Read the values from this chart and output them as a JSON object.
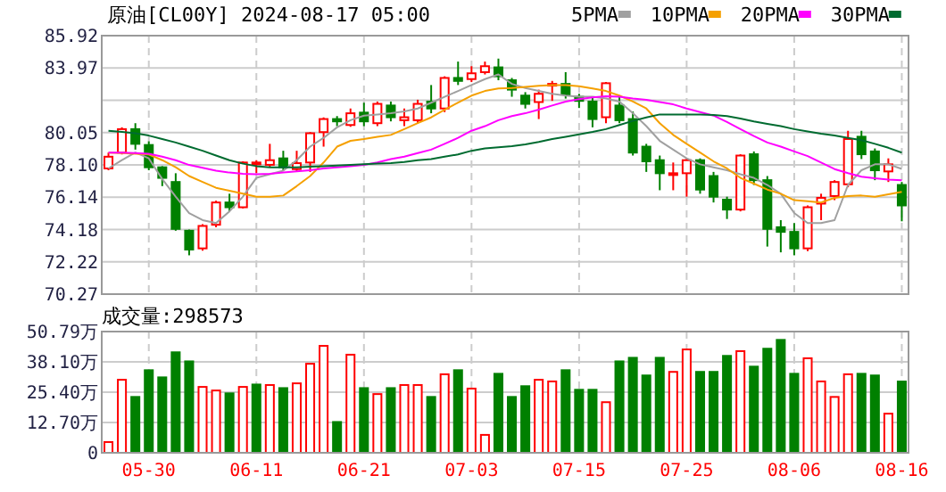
{
  "chart_data": [
    {
      "type": "candlestick",
      "title": "原油[CL00Y] 2024-08-17 05:00",
      "categories": [
        null,
        null,
        null,
        null,
        null,
        null,
        null,
        null,
        null,
        null,
        null,
        null,
        null,
        null,
        null,
        null,
        null,
        null,
        null,
        null,
        null,
        null,
        null,
        null,
        null,
        null,
        null,
        null,
        null,
        null,
        null,
        null,
        null,
        null,
        null,
        null,
        null,
        null,
        null,
        null,
        null,
        null,
        null,
        null,
        null,
        null,
        null,
        null,
        null,
        null,
        null,
        null,
        null,
        null,
        null,
        null,
        null,
        null,
        null,
        null
      ],
      "ohlc": [
        [
          77.88,
          78.84,
          77.77,
          78.59
        ],
        [
          78.84,
          80.37,
          78.73,
          80.26
        ],
        [
          80.26,
          80.62,
          79.02,
          79.37
        ],
        [
          79.3,
          79.52,
          77.77,
          77.95
        ],
        [
          77.95,
          78.02,
          76.81,
          77.31
        ],
        [
          77.06,
          77.59,
          74.11,
          74.22
        ],
        [
          74.11,
          74.18,
          72.62,
          72.97
        ],
        [
          73.04,
          74.5,
          72.9,
          74.4
        ],
        [
          74.47,
          75.93,
          74.32,
          75.82
        ],
        [
          75.82,
          76.35,
          75.29,
          75.53
        ],
        [
          75.53,
          78.31,
          75.46,
          78.24
        ],
        [
          78.17,
          78.38,
          77.6,
          78.24
        ],
        [
          78.1,
          79.37,
          77.95,
          78.38
        ],
        [
          78.49,
          78.95,
          77.77,
          77.95
        ],
        [
          77.84,
          78.95,
          77.67,
          78.2
        ],
        [
          78.24,
          80.08,
          77.67,
          80.01
        ],
        [
          80.08,
          80.97,
          79.2,
          80.87
        ],
        [
          80.87,
          81.05,
          80.44,
          80.73
        ],
        [
          80.51,
          81.51,
          80.4,
          81.22
        ],
        [
          81.26,
          81.86,
          80.44,
          80.73
        ],
        [
          80.62,
          81.93,
          80.44,
          81.79
        ],
        [
          81.69,
          81.93,
          80.73,
          80.98
        ],
        [
          80.8,
          81.51,
          80.44,
          80.98
        ],
        [
          80.8,
          82.04,
          80.62,
          81.79
        ],
        [
          81.93,
          82.93,
          81.22,
          81.51
        ],
        [
          81.51,
          83.46,
          81.29,
          83.36
        ],
        [
          83.36,
          84.35,
          82.93,
          83.18
        ],
        [
          83.29,
          84.07,
          83.11,
          83.64
        ],
        [
          83.71,
          84.35,
          83.57,
          84.07
        ],
        [
          84.0,
          84.53,
          83.22,
          83.46
        ],
        [
          83.22,
          83.36,
          82.22,
          82.65
        ],
        [
          82.29,
          82.5,
          81.51,
          81.79
        ],
        [
          81.9,
          82.65,
          80.87,
          82.4
        ],
        [
          82.9,
          83.18,
          81.97,
          83.0
        ],
        [
          83.0,
          83.71,
          82.11,
          82.36
        ],
        [
          82.22,
          82.4,
          81.54,
          81.97
        ],
        [
          81.93,
          82.22,
          80.37,
          80.87
        ],
        [
          80.98,
          83.11,
          80.62,
          83.04
        ],
        [
          81.69,
          82.29,
          80.62,
          80.8
        ],
        [
          80.87,
          81.33,
          78.66,
          78.84
        ],
        [
          79.2,
          79.37,
          77.67,
          78.31
        ],
        [
          78.38,
          78.66,
          76.56,
          77.59
        ],
        [
          77.52,
          78.24,
          76.56,
          77.59
        ],
        [
          77.59,
          78.49,
          76.17,
          78.38
        ],
        [
          78.38,
          78.49,
          76.35,
          76.6
        ],
        [
          77.42,
          77.67,
          75.82,
          76.17
        ],
        [
          75.99,
          76.17,
          74.82,
          75.39
        ],
        [
          75.39,
          78.74,
          75.28,
          78.66
        ],
        [
          78.74,
          78.91,
          76.88,
          77.17
        ],
        [
          77.17,
          77.42,
          73.15,
          74.22
        ],
        [
          74.32,
          74.75,
          72.8,
          74.04
        ],
        [
          74.04,
          74.57,
          72.62,
          73.04
        ],
        [
          73.04,
          75.64,
          72.87,
          75.53
        ],
        [
          75.75,
          76.35,
          74.75,
          76.1
        ],
        [
          76.21,
          77.17,
          75.96,
          77.06
        ],
        [
          76.92,
          80.16,
          76.74,
          79.66
        ],
        [
          79.8,
          80.16,
          78.45,
          78.74
        ],
        [
          78.91,
          79.09,
          77.17,
          77.77
        ],
        [
          77.7,
          78.49,
          77.06,
          78.13
        ],
        [
          76.88,
          77.06,
          74.68,
          75.64
        ]
      ],
      "colors": [
        "#ff0000",
        "#ff0000",
        "#008000",
        "#008000",
        "#008000",
        "#008000",
        "#008000",
        "#ff0000",
        "#ff0000",
        "#008000",
        "#ff0000",
        "#ff0000",
        "#ff0000",
        "#008000",
        "#ff0000",
        "#ff0000",
        "#ff0000",
        "#008000",
        "#ff0000",
        "#008000",
        "#ff0000",
        "#008000",
        "#ff0000",
        "#ff0000",
        "#008000",
        "#ff0000",
        "#008000",
        "#ff0000",
        "#ff0000",
        "#008000",
        "#008000",
        "#008000",
        "#ff0000",
        "#ff0000",
        "#008000",
        "#008000",
        "#008000",
        "#ff0000",
        "#008000",
        "#008000",
        "#008000",
        "#008000",
        "#ff0000",
        "#ff0000",
        "#008000",
        "#008000",
        "#008000",
        "#ff0000",
        "#008000",
        "#008000",
        "#008000",
        "#008000",
        "#ff0000",
        "#ff0000",
        "#ff0000",
        "#ff0000",
        "#008000",
        "#008000",
        "#ff0000",
        "#008000"
      ],
      "series": [
        {
          "type": "line",
          "name": "5PMA",
          "color": "#a0a0a0",
          "values": [
            77.88,
            78.38,
            78.84,
            78.49,
            77.24,
            76.17,
            75.18,
            74.75,
            74.57,
            75.28,
            76.17,
            77.31,
            77.53,
            77.74,
            78.38,
            79.2,
            79.73,
            80.37,
            80.8,
            81.08,
            81.15,
            81.22,
            81.33,
            81.51,
            81.86,
            82.22,
            82.57,
            82.93,
            83.29,
            83.57,
            83.0,
            82.75,
            82.57,
            82.4,
            82.29,
            82.22,
            82.22,
            82.11,
            81.93,
            81.22,
            80.44,
            79.55,
            79.02,
            78.49,
            78.13,
            77.95,
            77.77,
            77.53,
            77.31,
            76.88,
            76.35,
            75.18,
            74.57,
            74.57,
            74.75,
            76.88,
            77.77,
            78.13,
            78.13,
            77.85
          ]
        },
        {
          "type": "line",
          "name": "10PMA",
          "color": "#f5a000",
          "values": [
            78.84,
            78.81,
            78.77,
            78.73,
            78.38,
            77.95,
            77.42,
            77.06,
            76.71,
            76.53,
            76.35,
            76.17,
            76.17,
            76.24,
            76.81,
            77.42,
            78.24,
            79.2,
            79.55,
            79.66,
            79.8,
            79.91,
            80.26,
            80.62,
            80.97,
            81.44,
            81.86,
            82.29,
            82.57,
            82.72,
            82.75,
            82.82,
            82.89,
            82.93,
            82.93,
            82.86,
            82.72,
            82.57,
            82.29,
            81.93,
            81.51,
            80.62,
            79.91,
            79.37,
            78.84,
            78.31,
            77.88,
            77.31,
            76.96,
            76.6,
            76.35,
            75.96,
            75.89,
            75.82,
            76.1,
            76.21,
            76.24,
            76.17,
            76.31,
            76.46
          ]
        },
        {
          "type": "line",
          "name": "20PMA",
          "color": "#ff00ff",
          "values": [
            78.84,
            78.84,
            78.81,
            78.77,
            78.59,
            78.38,
            78.09,
            77.92,
            77.74,
            77.63,
            77.56,
            77.53,
            77.56,
            77.63,
            77.7,
            77.77,
            77.88,
            77.95,
            78.02,
            78.09,
            78.24,
            78.45,
            78.59,
            78.81,
            79.02,
            79.37,
            79.73,
            80.16,
            80.44,
            80.8,
            81.05,
            81.22,
            81.44,
            81.69,
            81.93,
            82.08,
            82.18,
            82.25,
            82.22,
            82.11,
            82.04,
            81.9,
            81.76,
            81.51,
            81.29,
            81.08,
            80.69,
            80.26,
            79.84,
            79.45,
            79.2,
            78.91,
            78.63,
            78.24,
            77.84,
            77.6,
            77.38,
            77.28,
            77.21,
            77.17
          ]
        },
        {
          "type": "line",
          "name": "30PMA",
          "color": "#006b30",
          "values": [
            80.16,
            80.09,
            80.01,
            79.87,
            79.66,
            79.45,
            79.2,
            78.95,
            78.66,
            78.38,
            78.17,
            78.02,
            77.95,
            77.95,
            77.95,
            77.99,
            78.02,
            78.06,
            78.09,
            78.13,
            78.17,
            78.2,
            78.27,
            78.38,
            78.45,
            78.59,
            78.73,
            78.95,
            79.09,
            79.16,
            79.23,
            79.34,
            79.48,
            79.66,
            79.8,
            79.94,
            80.09,
            80.26,
            80.51,
            80.76,
            80.97,
            81.15,
            81.15,
            81.15,
            81.15,
            81.12,
            81.05,
            80.9,
            80.73,
            80.58,
            80.44,
            80.26,
            80.12,
            79.98,
            79.87,
            79.73,
            79.59,
            79.37,
            79.13,
            78.84
          ]
        }
      ],
      "ylim": [
        70.27,
        85.92
      ],
      "yticks": [
        85.92,
        83.97,
        {
          "value": 82.01,
          "label": null
        },
        80.05,
        {
          "value": 78.1,
          "label": "78.10"
        },
        76.14,
        74.18,
        72.22,
        70.27
      ],
      "grid": true,
      "legend": "top right",
      "tick_labels": "y"
    },
    {
      "type": "bar",
      "title": "成交量:298573",
      "categories": [
        null,
        null,
        null,
        "05-30",
        null,
        null,
        null,
        null,
        null,
        null,
        null,
        "06-11",
        null,
        null,
        null,
        null,
        null,
        null,
        null,
        "06-21",
        null,
        null,
        null,
        null,
        null,
        null,
        null,
        "07-03",
        null,
        null,
        null,
        null,
        null,
        null,
        null,
        "07-15",
        null,
        null,
        null,
        null,
        null,
        null,
        null,
        "07-25",
        null,
        null,
        null,
        null,
        null,
        null,
        null,
        "08-06",
        null,
        null,
        null,
        null,
        null,
        null,
        null,
        "08-16"
      ],
      "values": [
        4.5,
        30.6,
        23.4,
        34.6,
        31.6,
        42.1,
        38.3,
        27.6,
        26.1,
        24.9,
        27.6,
        28.6,
        28.4,
        27.1,
        29.1,
        37.3,
        44.8,
        12.9,
        41.1,
        27.1,
        24.6,
        27.1,
        28.4,
        28.4,
        23.4,
        32.9,
        34.6,
        26.9,
        7.5,
        33.1,
        23.4,
        27.9,
        30.6,
        29.9,
        34.6,
        26.4,
        26.4,
        21.2,
        38.3,
        39.8,
        32.4,
        39.8,
        33.9,
        43.3,
        33.9,
        33.9,
        40.6,
        42.6,
        36.1,
        43.6,
        47.3,
        33.1,
        39.6,
        29.9,
        23.4,
        32.9,
        33.1,
        32.4,
        16.4,
        29.86
      ],
      "colors": [
        "#ff0000",
        "#ff0000",
        "#008000",
        "#008000",
        "#008000",
        "#008000",
        "#008000",
        "#ff0000",
        "#ff0000",
        "#008000",
        "#ff0000",
        "#008000",
        "#ff0000",
        "#008000",
        "#ff0000",
        "#ff0000",
        "#ff0000",
        "#008000",
        "#ff0000",
        "#008000",
        "#ff0000",
        "#008000",
        "#ff0000",
        "#ff0000",
        "#008000",
        "#ff0000",
        "#008000",
        "#ff0000",
        "#ff0000",
        "#008000",
        "#008000",
        "#008000",
        "#ff0000",
        "#ff0000",
        "#008000",
        "#008000",
        "#008000",
        "#ff0000",
        "#008000",
        "#008000",
        "#008000",
        "#008000",
        "#ff0000",
        "#ff0000",
        "#008000",
        "#008000",
        "#008000",
        "#ff0000",
        "#008000",
        "#008000",
        "#008000",
        "#008000",
        "#ff0000",
        "#ff0000",
        "#ff0000",
        "#ff0000",
        "#008000",
        "#008000",
        "#ff0000",
        "#008000"
      ],
      "ylim": [
        0,
        50.79
      ],
      "yticks": [
        0,
        {
          "value": 12.7,
          "label": "12.70万"
        },
        {
          "value": 25.4,
          "label": "25.40万"
        },
        {
          "value": 38.1,
          "label": "38.10万"
        },
        {
          "value": 50.79,
          "label": "50.79万"
        }
      ],
      "grid": true
    }
  ]
}
